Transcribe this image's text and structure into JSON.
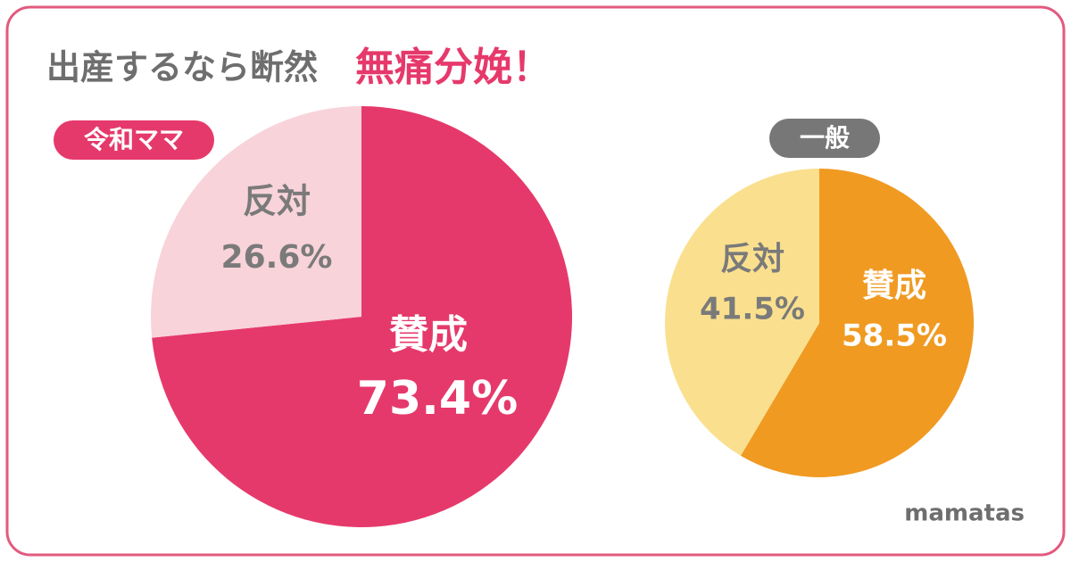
{
  "title": "出産するなら断然",
  "title_highlight": "無痛分娩！",
  "brand": "mamatas",
  "chart_data": [
    {
      "type": "pie",
      "title": "令和ママ",
      "title_color": "#e6396b",
      "categories": [
        "賛成",
        "反対"
      ],
      "values": [
        73.4,
        26.6
      ],
      "value_labels": [
        "73.4%",
        "26.6%"
      ],
      "colors": [
        "#e6396b",
        "#f8d3da"
      ],
      "label_colors": [
        "#ffffff",
        "#7a7a7a"
      ]
    },
    {
      "type": "pie",
      "title": "一般",
      "title_color": "#777777",
      "categories": [
        "賛成",
        "反対"
      ],
      "values": [
        58.5,
        41.5
      ],
      "value_labels": [
        "58.5%",
        "41.5%"
      ],
      "colors": [
        "#f09a22",
        "#fae08e"
      ],
      "label_colors": [
        "#ffffff",
        "#7a7a7a"
      ]
    }
  ]
}
